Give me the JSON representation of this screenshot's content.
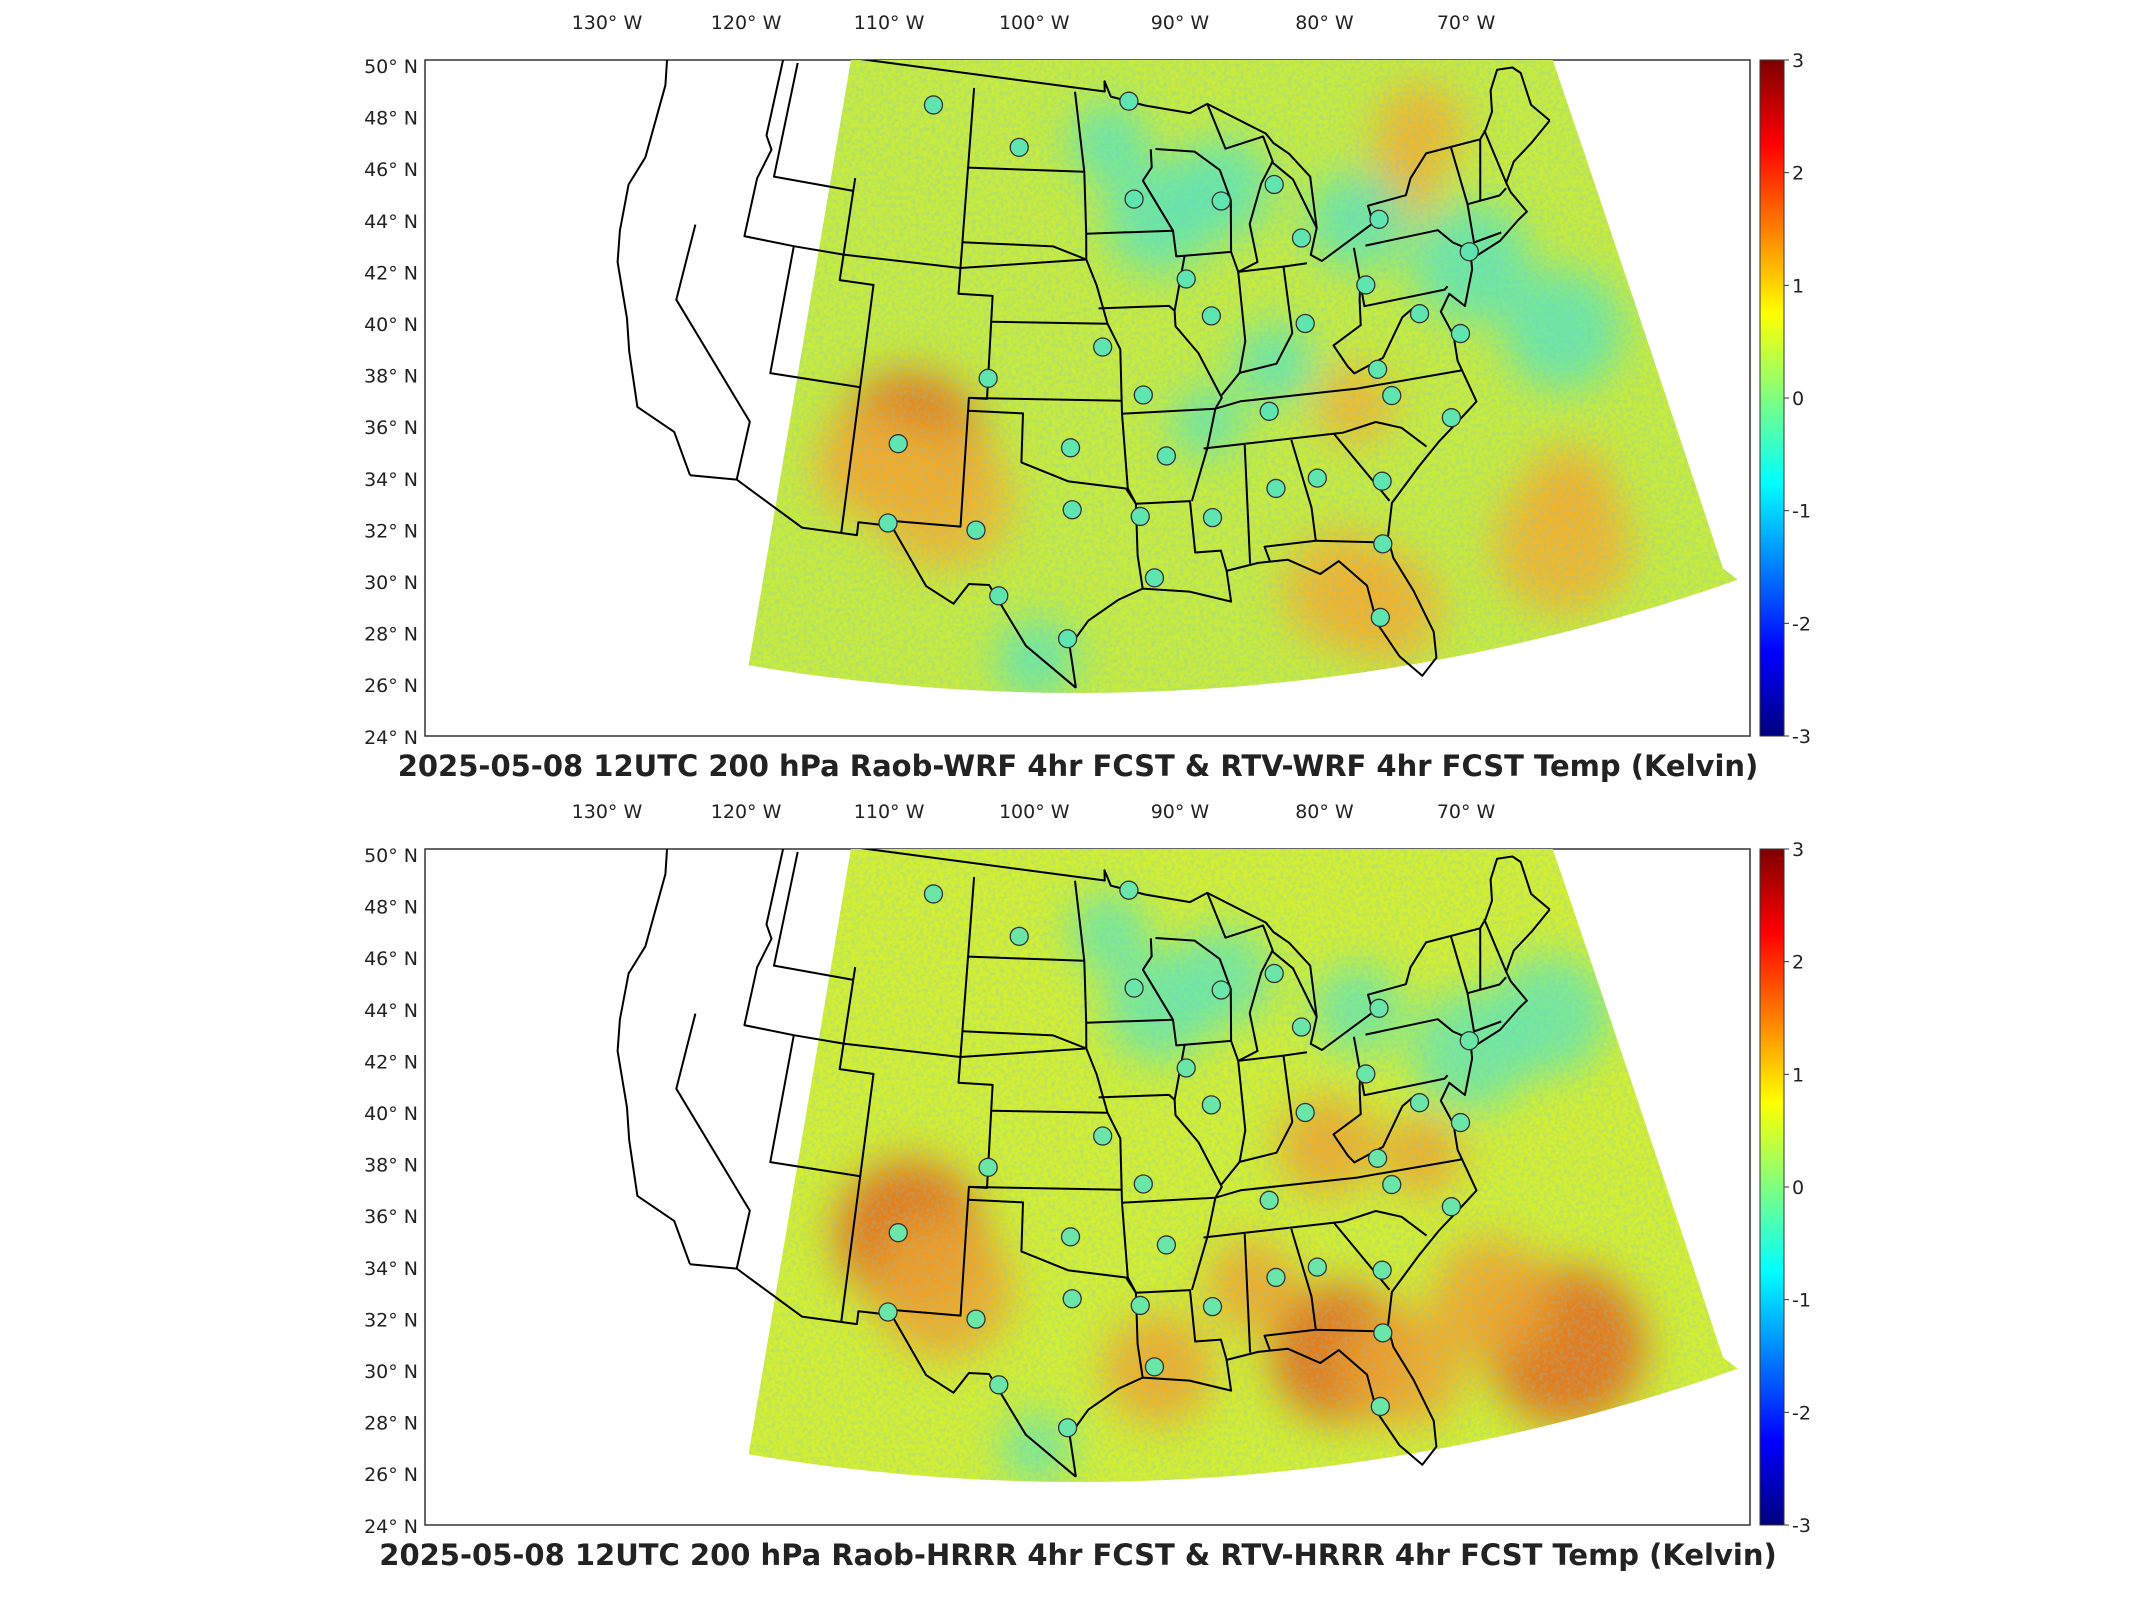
{
  "lon_labels": [
    {
      "deg": "130",
      "dir": "W"
    },
    {
      "deg": "120",
      "dir": "W"
    },
    {
      "deg": "110",
      "dir": "W"
    },
    {
      "deg": "100",
      "dir": "W"
    },
    {
      "deg": "90",
      "dir": "W"
    },
    {
      "deg": "80",
      "dir": "W"
    },
    {
      "deg": "70",
      "dir": "W"
    }
  ],
  "lat_labels": [
    {
      "deg": "50",
      "dir": "N"
    },
    {
      "deg": "48",
      "dir": "N"
    },
    {
      "deg": "46",
      "dir": "N"
    },
    {
      "deg": "44",
      "dir": "N"
    },
    {
      "deg": "42",
      "dir": "N"
    },
    {
      "deg": "40",
      "dir": "N"
    },
    {
      "deg": "38",
      "dir": "N"
    },
    {
      "deg": "36",
      "dir": "N"
    },
    {
      "deg": "34",
      "dir": "N"
    },
    {
      "deg": "32",
      "dir": "N"
    },
    {
      "deg": "30",
      "dir": "N"
    },
    {
      "deg": "28",
      "dir": "N"
    },
    {
      "deg": "26",
      "dir": "N"
    },
    {
      "deg": "24",
      "dir": "N"
    }
  ],
  "colorbar": {
    "min": -3,
    "max": 3,
    "ticks": [
      "3",
      "2",
      "1",
      "0",
      "-1",
      "-2",
      "-3"
    ],
    "colormap": [
      "#00007f",
      "#0000ff",
      "#007fff",
      "#00ffff",
      "#7fff7f",
      "#ffff00",
      "#ff7f00",
      "#ff0000",
      "#7f0000"
    ]
  },
  "panels": [
    {
      "title": "2025-05-08 12UTC 200 hPa Raob-WRF 4hr FCST & RTV-WRF 4hr FCST Temp (Kelvin)",
      "field_colors": {
        "base": "#c8ec3c",
        "warm": "#f4b028",
        "cool": "#5fe6b0",
        "hot": "#e8701a"
      }
    },
    {
      "title": "2025-05-08 12UTC 200 hPa Raob-HRRR 4hr FCST & RTV-HRRR 4hr FCST Temp (Kelvin)",
      "field_colors": {
        "base": "#d4ef30",
        "warm": "#f5a224",
        "cool": "#6ae7a8",
        "hot": "#e6661a"
      }
    }
  ],
  "raob_stations": [
    {
      "lon": -106.6,
      "lat": 48.2
    },
    {
      "lon": -100.8,
      "lat": 46.8
    },
    {
      "lon": -93.6,
      "lat": 48.6
    },
    {
      "lon": -93.5,
      "lat": 44.8
    },
    {
      "lon": -88.1,
      "lat": 44.5
    },
    {
      "lon": -84.7,
      "lat": 44.9
    },
    {
      "lon": -83.5,
      "lat": 42.7
    },
    {
      "lon": -78.7,
      "lat": 42.9
    },
    {
      "lon": -90.6,
      "lat": 41.6
    },
    {
      "lon": -89.3,
      "lat": 40.1
    },
    {
      "lon": -84.0,
      "lat": 39.4
    },
    {
      "lon": -80.2,
      "lat": 40.5
    },
    {
      "lon": -77.5,
      "lat": 39.0
    },
    {
      "lon": -75.5,
      "lat": 37.9
    },
    {
      "lon": -80.4,
      "lat": 37.2
    },
    {
      "lon": -95.6,
      "lat": 39.1
    },
    {
      "lon": -102.0,
      "lat": 37.8
    },
    {
      "lon": -93.4,
      "lat": 37.2
    },
    {
      "lon": -86.6,
      "lat": 36.2
    },
    {
      "lon": -79.9,
      "lat": 36.1
    },
    {
      "lon": -97.4,
      "lat": 35.2
    },
    {
      "lon": -92.3,
      "lat": 34.8
    },
    {
      "lon": -106.6,
      "lat": 35.0
    },
    {
      "lon": -106.7,
      "lat": 31.9
    },
    {
      "lon": -102.2,
      "lat": 31.9
    },
    {
      "lon": -97.3,
      "lat": 32.8
    },
    {
      "lon": -93.8,
      "lat": 32.5
    },
    {
      "lon": -90.1,
      "lat": 32.3
    },
    {
      "lon": -86.7,
      "lat": 33.2
    },
    {
      "lon": -84.5,
      "lat": 33.4
    },
    {
      "lon": -81.2,
      "lat": 32.9
    },
    {
      "lon": -77.0,
      "lat": 34.8
    },
    {
      "lon": -81.7,
      "lat": 30.5
    },
    {
      "lon": -82.4,
      "lat": 27.7
    },
    {
      "lon": -97.5,
      "lat": 27.8
    },
    {
      "lon": -100.9,
      "lat": 29.4
    },
    {
      "lon": -93.2,
      "lat": 30.1
    },
    {
      "lon": -73.9,
      "lat": 40.9
    }
  ]
}
